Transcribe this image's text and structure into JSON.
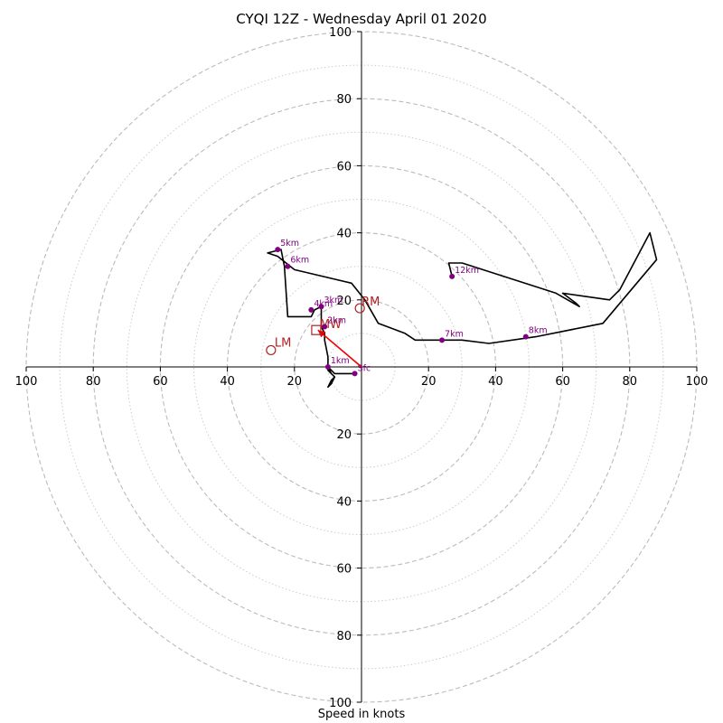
{
  "chart_data": {
    "type": "line",
    "title": "CYQI 12Z - Wednesday April 01 2020",
    "xlabel": "Speed in knots",
    "xlim": [
      -100,
      100
    ],
    "ylim": [
      -100,
      100
    ],
    "grid": true,
    "ring_labels": [
      "20",
      "40",
      "60",
      "80",
      "100"
    ],
    "x_ticks": [
      {
        "value": -100,
        "label": "100"
      },
      {
        "value": -80,
        "label": "80"
      },
      {
        "value": -60,
        "label": "60"
      },
      {
        "value": -40,
        "label": "40"
      },
      {
        "value": -20,
        "label": "20"
      },
      {
        "value": 20,
        "label": "20"
      },
      {
        "value": 40,
        "label": "40"
      },
      {
        "value": 60,
        "label": "60"
      },
      {
        "value": 80,
        "label": "80"
      },
      {
        "value": 100,
        "label": "100"
      }
    ],
    "y_ticks": [
      {
        "value": 100,
        "label": "100"
      },
      {
        "value": 80,
        "label": "80"
      },
      {
        "value": 60,
        "label": "60"
      },
      {
        "value": 40,
        "label": "40"
      },
      {
        "value": 20,
        "label": "20"
      },
      {
        "value": -20,
        "label": "20"
      },
      {
        "value": -40,
        "label": "40"
      },
      {
        "value": -60,
        "label": "60"
      },
      {
        "value": -80,
        "label": "80"
      },
      {
        "value": -100,
        "label": "100"
      }
    ],
    "hodograph": {
      "color": "#000000",
      "points": [
        [
          -2,
          -2
        ],
        [
          -8,
          -2
        ],
        [
          -9,
          -1
        ],
        [
          -10,
          0
        ],
        [
          -9,
          -2
        ],
        [
          -8,
          -3
        ],
        [
          -9,
          -5
        ],
        [
          -10,
          -6
        ],
        [
          -9,
          -4
        ],
        [
          -8,
          -3
        ],
        [
          -10,
          -1
        ],
        [
          -10,
          0
        ],
        [
          -10,
          3
        ],
        [
          -11,
          8
        ],
        [
          -11,
          10
        ],
        [
          -12,
          12
        ],
        [
          -12,
          16
        ],
        [
          -12,
          18
        ],
        [
          -14,
          17
        ],
        [
          -15,
          15
        ],
        [
          -19,
          15
        ],
        [
          -22,
          15
        ],
        [
          -23,
          30
        ],
        [
          -24,
          35
        ],
        [
          -28,
          34
        ],
        [
          -25,
          33
        ],
        [
          -20,
          29
        ],
        [
          -3,
          25
        ],
        [
          1,
          20
        ],
        [
          5,
          13
        ],
        [
          13,
          10
        ],
        [
          16,
          8
        ],
        [
          23,
          8
        ],
        [
          30,
          8
        ],
        [
          38,
          7
        ],
        [
          52,
          9
        ],
        [
          72,
          13
        ],
        [
          88,
          32
        ],
        [
          86,
          40
        ],
        [
          77,
          23
        ],
        [
          74,
          20
        ],
        [
          60,
          22
        ],
        [
          64,
          19
        ],
        [
          65,
          18
        ],
        [
          58,
          22
        ],
        [
          30,
          31
        ],
        [
          26,
          31
        ],
        [
          27,
          27
        ]
      ]
    },
    "height_markers": [
      {
        "label": "1km",
        "x": -10,
        "y": 0
      },
      {
        "label": "2km",
        "x": -11,
        "y": 12
      },
      {
        "label": "3km",
        "x": -12,
        "y": 18
      },
      {
        "label": "4km",
        "x": -15,
        "y": 17
      },
      {
        "label": "5km",
        "x": -25,
        "y": 35
      },
      {
        "label": "6km",
        "x": -22,
        "y": 30
      },
      {
        "label": "7km",
        "x": 24,
        "y": 8
      },
      {
        "label": "8km",
        "x": 49,
        "y": 9
      },
      {
        "label": "12km",
        "x": 27,
        "y": 27
      }
    ],
    "surface_marker": {
      "label": "Sfc",
      "x": -2,
      "y": -2
    },
    "storm_motion": {
      "color": "#b22222",
      "right_mover": {
        "label": "RM",
        "x": -0.5,
        "y": 17.5
      },
      "left_mover": {
        "label": "LM",
        "x": -27,
        "y": 5
      },
      "mean_wind": {
        "label": "MW",
        "x": -13.5,
        "y": 11
      },
      "bunkers_vector": {
        "from": [
          0,
          0
        ],
        "to": [
          -13,
          11
        ]
      }
    },
    "colors": {
      "hodograph": "#000000",
      "height_marker": "#800080",
      "storm": "#b22222",
      "vector": "#ee0000",
      "grid_major": "#bbbbbb",
      "grid_minor": "#cccccc"
    }
  }
}
